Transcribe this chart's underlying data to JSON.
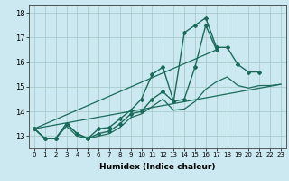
{
  "title": "",
  "xlabel": "Humidex (Indice chaleur)",
  "bg_color": "#cce8f0",
  "grid_color": "#aacccc",
  "line_color": "#1a6b5a",
  "xlim": [
    -0.5,
    23.5
  ],
  "ylim": [
    12.5,
    18.3
  ],
  "yticks": [
    13,
    14,
    15,
    16,
    17,
    18
  ],
  "xticks": [
    0,
    1,
    2,
    3,
    4,
    5,
    6,
    7,
    8,
    9,
    10,
    11,
    12,
    13,
    14,
    15,
    16,
    17,
    18,
    19,
    20,
    21,
    22,
    23
  ],
  "lines": [
    {
      "x": [
        0,
        1,
        2,
        3,
        4,
        5,
        6,
        7,
        8,
        9,
        10,
        11,
        12,
        13,
        14,
        15,
        16,
        17,
        18,
        19,
        20,
        21
      ],
      "y": [
        13.3,
        12.9,
        12.9,
        13.5,
        13.1,
        12.9,
        13.3,
        13.35,
        13.7,
        14.05,
        14.5,
        15.5,
        15.8,
        14.4,
        17.2,
        17.5,
        17.8,
        16.6,
        16.6,
        15.9,
        15.6,
        15.6
      ],
      "marker": "D",
      "markersize": 2.0,
      "linewidth": 1.0
    },
    {
      "x": [
        0,
        1,
        2,
        3,
        4,
        5,
        6,
        7,
        8,
        9,
        10,
        11,
        12,
        13,
        14,
        15,
        16,
        17
      ],
      "y": [
        13.3,
        12.9,
        12.9,
        13.5,
        13.1,
        12.9,
        13.1,
        13.2,
        13.5,
        13.9,
        14.0,
        14.5,
        14.8,
        14.4,
        14.5,
        15.8,
        17.5,
        16.5
      ],
      "marker": "D",
      "markersize": 2.0,
      "linewidth": 1.0
    },
    {
      "x": [
        0,
        1,
        2,
        3,
        4,
        5,
        6,
        7,
        8,
        9,
        10,
        11,
        12,
        13,
        14,
        15,
        16,
        17,
        18,
        19,
        20,
        21,
        22,
        23
      ],
      "y": [
        13.3,
        12.9,
        12.9,
        13.4,
        13.0,
        12.9,
        13.0,
        13.1,
        13.35,
        13.75,
        13.9,
        14.2,
        14.5,
        14.05,
        14.1,
        14.4,
        14.9,
        15.2,
        15.4,
        15.05,
        14.95,
        15.05,
        15.05,
        15.1
      ],
      "marker": null,
      "markersize": 0,
      "linewidth": 0.9
    },
    {
      "x": [
        0,
        23
      ],
      "y": [
        13.3,
        15.1
      ],
      "marker": null,
      "markersize": 0,
      "linewidth": 0.9
    },
    {
      "x": [
        0,
        17
      ],
      "y": [
        13.3,
        16.5
      ],
      "marker": null,
      "markersize": 0,
      "linewidth": 0.9
    }
  ]
}
